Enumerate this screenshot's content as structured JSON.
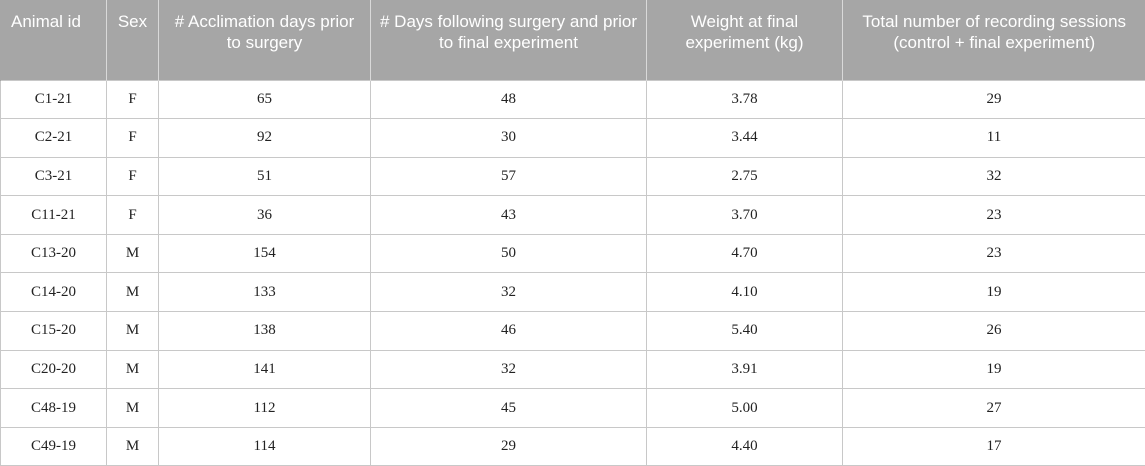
{
  "table": {
    "headers": [
      "Animal id",
      "Sex",
      "# Acclimation days prior to surgery",
      "# Days following surgery and prior to final experiment",
      "Weight at final experiment (kg)",
      "Total number of recording sessions (control + final experiment)"
    ],
    "rows": [
      [
        "C1-21",
        "F",
        "65",
        "48",
        "3.78",
        "29"
      ],
      [
        "C2-21",
        "F",
        "92",
        "30",
        "3.44",
        "11"
      ],
      [
        "C3-21",
        "F",
        "51",
        "57",
        "2.75",
        "32"
      ],
      [
        "C11-21",
        "F",
        "36",
        "43",
        "3.70",
        "23"
      ],
      [
        "C13-20",
        "M",
        "154",
        "50",
        "4.70",
        "23"
      ],
      [
        "C14-20",
        "M",
        "133",
        "32",
        "4.10",
        "19"
      ],
      [
        "C15-20",
        "M",
        "138",
        "46",
        "5.40",
        "26"
      ],
      [
        "C20-20",
        "M",
        "141",
        "32",
        "3.91",
        "19"
      ],
      [
        "C48-19",
        "M",
        "112",
        "45",
        "5.00",
        "27"
      ],
      [
        "C49-19",
        "M",
        "114",
        "29",
        "4.40",
        "17"
      ]
    ]
  }
}
